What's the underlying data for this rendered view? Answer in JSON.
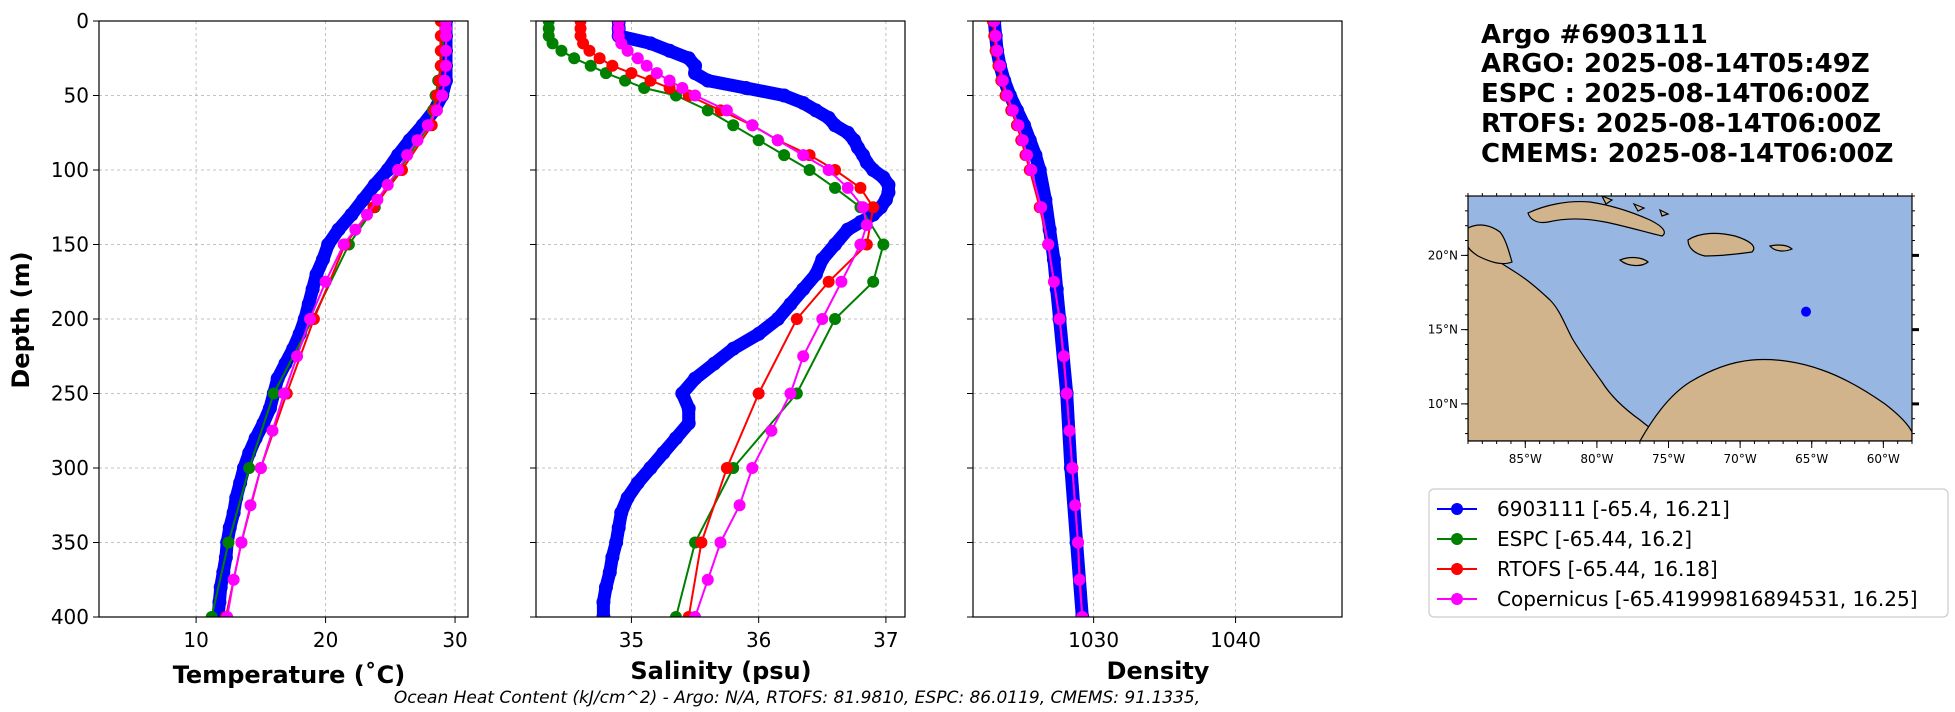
{
  "figure": {
    "title_lines": [
      "Argo #6903111",
      "ARGO: 2025-08-14T05:49Z",
      "ESPC : 2025-08-14T06:00Z",
      "RTOFS: 2025-08-14T06:00Z",
      "CMEMS: 2025-08-14T06:00Z"
    ],
    "footer": "Ocean Heat Content (kJ/cm^2) - Argo: N/A,  RTOFS: 81.9810,  ESPC: 86.0119,  CMEMS: 91.1335,"
  },
  "colors": {
    "argo": "#0000ff",
    "espc": "#008000",
    "rtofs": "#ff0000",
    "copernicus": "#ff00ff",
    "ocean": "#97b6e1",
    "land": "#d2b48c"
  },
  "chart_data": [
    {
      "type": "line",
      "id": "temperature",
      "xlabel": "Temperature (˚C)",
      "ylabel": "Depth (m)",
      "xlim": [
        2.5,
        31
      ],
      "ylim": [
        400,
        0
      ],
      "xticks": [
        10,
        20,
        30
      ],
      "yticks": [
        0,
        50,
        100,
        150,
        200,
        250,
        300,
        350,
        400
      ],
      "grid": true,
      "series": [
        {
          "name": "6903111",
          "color_key": "argo",
          "marker": "thick",
          "depth": [
            0,
            10,
            20,
            30,
            40,
            50,
            60,
            70,
            80,
            90,
            100,
            110,
            120,
            130,
            140,
            150,
            160,
            170,
            180,
            190,
            200,
            210,
            220,
            230,
            240,
            250,
            260,
            270,
            280,
            290,
            300,
            310,
            320,
            330,
            340,
            350,
            360,
            370,
            380,
            390,
            400
          ],
          "values": [
            29.3,
            29.3,
            29.3,
            29.3,
            29.3,
            29.0,
            28.4,
            27.5,
            26.5,
            25.6,
            24.8,
            23.8,
            22.9,
            22.0,
            21.0,
            20.2,
            19.8,
            19.3,
            19.0,
            18.7,
            18.4,
            18.0,
            17.5,
            16.9,
            16.3,
            16.0,
            15.7,
            15.2,
            14.6,
            14.1,
            13.7,
            13.4,
            13.1,
            12.9,
            12.6,
            12.4,
            12.3,
            12.1,
            11.9,
            11.8,
            11.7
          ]
        },
        {
          "name": "ESPC",
          "color_key": "espc",
          "marker": "dot",
          "depth": [
            0,
            10,
            20,
            30,
            40,
            50,
            60,
            70,
            100,
            125,
            150,
            200,
            250,
            300,
            350,
            400
          ],
          "values": [
            29.1,
            29.1,
            29.0,
            28.9,
            28.7,
            28.5,
            28.3,
            28.0,
            25.7,
            23.8,
            21.8,
            19.0,
            16.0,
            14.1,
            12.5,
            11.2
          ]
        },
        {
          "name": "RTOFS",
          "color_key": "rtofs",
          "marker": "dot",
          "depth": [
            0,
            10,
            20,
            30,
            40,
            50,
            60,
            70,
            100,
            125,
            150,
            200,
            250,
            300,
            350,
            400
          ],
          "values": [
            28.9,
            28.9,
            28.9,
            28.9,
            28.8,
            28.6,
            28.4,
            28.2,
            25.9,
            23.7,
            21.5,
            19.1,
            17.0,
            15.0,
            13.5,
            12.3
          ]
        },
        {
          "name": "Copernicus",
          "color_key": "copernicus",
          "marker": "dot",
          "depth": [
            0,
            5,
            10,
            20,
            30,
            40,
            50,
            60,
            70,
            80,
            90,
            100,
            110,
            120,
            130,
            140,
            150,
            175,
            200,
            225,
            250,
            275,
            300,
            325,
            350,
            375,
            400
          ],
          "values": [
            29.3,
            29.3,
            29.3,
            29.3,
            29.3,
            29.2,
            29.0,
            28.6,
            27.9,
            27.1,
            26.3,
            25.6,
            24.8,
            24.0,
            23.2,
            22.3,
            21.4,
            20.0,
            18.8,
            17.8,
            16.8,
            15.9,
            15.0,
            14.2,
            13.5,
            12.9,
            12.4
          ]
        }
      ]
    },
    {
      "type": "line",
      "id": "salinity",
      "xlabel": "Salinity (psu)",
      "ylabel": "",
      "xlim": [
        34.25,
        37.15
      ],
      "ylim": [
        400,
        0
      ],
      "xticks": [
        35,
        36,
        37
      ],
      "yticks": [
        0,
        50,
        100,
        150,
        200,
        250,
        300,
        350,
        400
      ],
      "grid": true,
      "series": [
        {
          "name": "6903111",
          "color_key": "argo",
          "marker": "thick",
          "depth": [
            0,
            5,
            10,
            15,
            20,
            25,
            30,
            35,
            40,
            45,
            50,
            55,
            60,
            65,
            70,
            75,
            80,
            85,
            90,
            95,
            100,
            105,
            110,
            115,
            120,
            125,
            130,
            135,
            140,
            150,
            160,
            170,
            180,
            190,
            200,
            210,
            220,
            230,
            240,
            250,
            260,
            270,
            280,
            290,
            300,
            310,
            320,
            330,
            340,
            350,
            360,
            370,
            380,
            390,
            400
          ],
          "values": [
            34.9,
            34.9,
            34.9,
            35.15,
            35.3,
            35.45,
            35.5,
            35.5,
            35.6,
            35.9,
            36.2,
            36.35,
            36.45,
            36.55,
            36.6,
            36.7,
            36.75,
            36.78,
            36.82,
            36.85,
            36.9,
            36.98,
            37.02,
            37.02,
            37.0,
            36.96,
            36.9,
            36.8,
            36.7,
            36.6,
            36.5,
            36.45,
            36.35,
            36.25,
            36.15,
            36.0,
            35.8,
            35.65,
            35.5,
            35.4,
            35.45,
            35.45,
            35.35,
            35.25,
            35.15,
            35.05,
            34.97,
            34.92,
            34.9,
            34.88,
            34.85,
            34.83,
            34.8,
            34.78,
            34.78
          ]
        },
        {
          "name": "ESPC",
          "color_key": "espc",
          "marker": "dot",
          "depth": [
            0,
            5,
            10,
            15,
            20,
            25,
            30,
            35,
            40,
            45,
            50,
            60,
            70,
            80,
            90,
            100,
            112,
            125,
            150,
            175,
            200,
            250,
            300,
            350,
            400
          ],
          "values": [
            34.35,
            34.35,
            34.35,
            34.38,
            34.45,
            34.55,
            34.68,
            34.8,
            34.95,
            35.1,
            35.35,
            35.6,
            35.8,
            36.0,
            36.2,
            36.4,
            36.6,
            36.8,
            36.98,
            36.9,
            36.6,
            36.3,
            35.8,
            35.5,
            35.35
          ]
        },
        {
          "name": "RTOFS",
          "color_key": "rtofs",
          "marker": "dot",
          "depth": [
            0,
            5,
            10,
            15,
            20,
            25,
            30,
            35,
            40,
            45,
            50,
            60,
            70,
            80,
            90,
            100,
            112,
            125,
            150,
            175,
            200,
            250,
            300,
            350,
            400
          ],
          "values": [
            34.6,
            34.6,
            34.6,
            34.62,
            34.67,
            34.75,
            34.85,
            35.0,
            35.15,
            35.3,
            35.45,
            35.7,
            35.95,
            36.15,
            36.4,
            36.6,
            36.8,
            36.9,
            36.85,
            36.55,
            36.3,
            36.0,
            35.75,
            35.55,
            35.45
          ]
        },
        {
          "name": "Copernicus",
          "color_key": "copernicus",
          "marker": "dot",
          "depth": [
            0,
            5,
            10,
            15,
            20,
            25,
            30,
            35,
            40,
            45,
            50,
            60,
            70,
            80,
            90,
            100,
            112,
            125,
            137,
            150,
            175,
            200,
            225,
            250,
            275,
            300,
            325,
            350,
            375,
            400
          ],
          "values": [
            34.9,
            34.9,
            34.9,
            34.92,
            34.97,
            35.05,
            35.12,
            35.2,
            35.3,
            35.4,
            35.5,
            35.75,
            35.95,
            36.15,
            36.35,
            36.55,
            36.7,
            36.82,
            36.85,
            36.8,
            36.65,
            36.5,
            36.35,
            36.25,
            36.1,
            35.95,
            35.85,
            35.7,
            35.6,
            35.5
          ]
        }
      ]
    },
    {
      "type": "line",
      "id": "density",
      "xlabel": "Density",
      "ylabel": "",
      "xlim": [
        1021.5,
        1047.5
      ],
      "ylim": [
        400,
        0
      ],
      "xticks": [
        1030,
        1040
      ],
      "yticks": [
        0,
        50,
        100,
        150,
        200,
        250,
        300,
        350,
        400
      ],
      "grid": true,
      "series": [
        {
          "name": "6903111",
          "color_key": "argo",
          "marker": "thick",
          "depth": [
            0,
            10,
            20,
            30,
            40,
            50,
            60,
            70,
            80,
            90,
            100,
            120,
            140,
            160,
            180,
            200,
            250,
            300,
            350,
            400
          ],
          "values": [
            1023.0,
            1023.1,
            1023.2,
            1023.4,
            1023.7,
            1024.1,
            1024.6,
            1025.1,
            1025.5,
            1025.9,
            1026.2,
            1026.6,
            1026.9,
            1027.2,
            1027.4,
            1027.6,
            1028.1,
            1028.4,
            1028.8,
            1029.2
          ]
        },
        {
          "name": "ESPC",
          "color_key": "espc",
          "marker": "dot",
          "depth": [
            0,
            10,
            20,
            30,
            40,
            50,
            60,
            70,
            80,
            90,
            100,
            125,
            150,
            200,
            250,
            300,
            350,
            400
          ],
          "values": [
            1022.9,
            1023.0,
            1023.1,
            1023.3,
            1023.5,
            1023.8,
            1024.2,
            1024.6,
            1025.0,
            1025.3,
            1025.6,
            1026.3,
            1026.8,
            1027.6,
            1028.1,
            1028.5,
            1028.9,
            1029.2
          ]
        },
        {
          "name": "RTOFS",
          "color_key": "rtofs",
          "marker": "dot",
          "depth": [
            0,
            10,
            20,
            30,
            40,
            50,
            60,
            70,
            80,
            90,
            100,
            125,
            150,
            200,
            250,
            300,
            350,
            400
          ],
          "values": [
            1022.9,
            1023.0,
            1023.1,
            1023.3,
            1023.5,
            1023.8,
            1024.2,
            1024.6,
            1024.9,
            1025.2,
            1025.5,
            1026.2,
            1026.8,
            1027.6,
            1028.1,
            1028.5,
            1028.9,
            1029.2
          ]
        },
        {
          "name": "Copernicus",
          "color_key": "copernicus",
          "marker": "dot",
          "depth": [
            0,
            10,
            20,
            30,
            40,
            50,
            60,
            70,
            80,
            90,
            100,
            125,
            150,
            175,
            200,
            225,
            250,
            275,
            300,
            325,
            350,
            375,
            400
          ],
          "values": [
            1023.0,
            1023.1,
            1023.2,
            1023.4,
            1023.6,
            1023.9,
            1024.3,
            1024.7,
            1025.0,
            1025.3,
            1025.6,
            1026.3,
            1026.8,
            1027.2,
            1027.6,
            1027.9,
            1028.1,
            1028.3,
            1028.5,
            1028.7,
            1028.9,
            1029.0,
            1029.2
          ]
        }
      ]
    }
  ],
  "map": {
    "lat_labels": [
      {
        "value": 20,
        "text": "20°N"
      },
      {
        "value": 15,
        "text": "15°N"
      },
      {
        "value": 10,
        "text": "10°N"
      }
    ],
    "lon_labels": [
      {
        "value": -85,
        "text": "85°W"
      },
      {
        "value": -80,
        "text": "80°W"
      },
      {
        "value": -75,
        "text": "75°W"
      },
      {
        "value": -70,
        "text": "70°W"
      },
      {
        "value": -65,
        "text": "65°W"
      },
      {
        "value": -60,
        "text": "60°W"
      }
    ],
    "lon_range": [
      -89,
      -58
    ],
    "lat_range": [
      7.5,
      24
    ],
    "float_position": {
      "lon": -65.4,
      "lat": 16.21
    }
  },
  "legend": {
    "entries": [
      {
        "label": "6903111 [-65.4, 16.21]",
        "color_key": "argo"
      },
      {
        "label": "ESPC [-65.44, 16.2]",
        "color_key": "espc"
      },
      {
        "label": "RTOFS [-65.44, 16.18]",
        "color_key": "rtofs"
      },
      {
        "label": "Copernicus [-65.41999816894531, 16.25]",
        "color_key": "copernicus"
      }
    ]
  }
}
